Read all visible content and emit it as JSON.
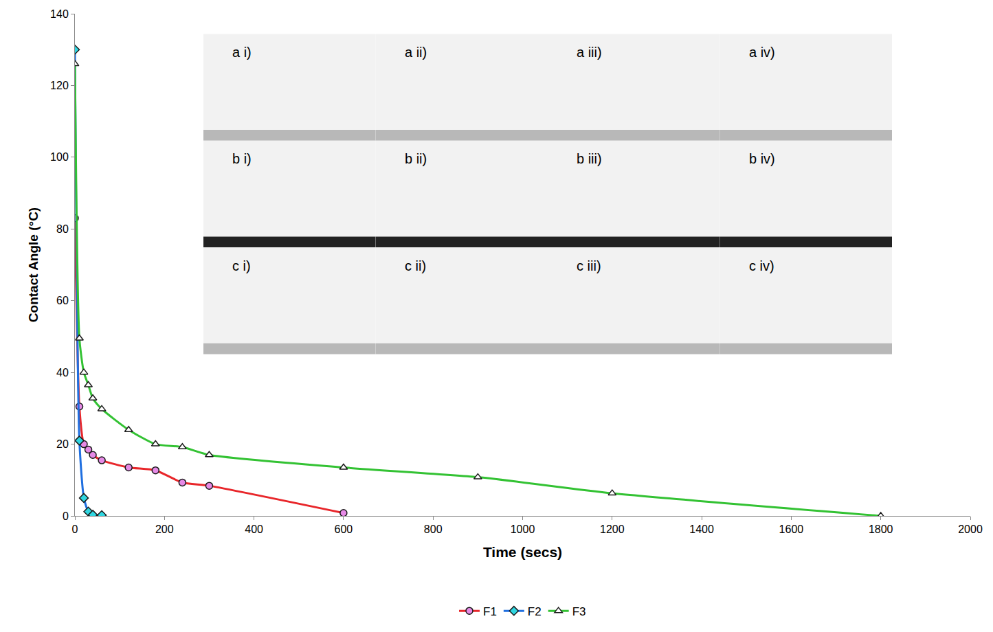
{
  "chart_data": {
    "type": "line",
    "x_label": "Time (secs)",
    "y_label": "Contact Angle (°C)",
    "xlim": [
      0,
      2000
    ],
    "xticks": [
      0,
      200,
      400,
      600,
      800,
      1000,
      1200,
      1400,
      1600,
      1800,
      2000
    ],
    "ylim": [
      0,
      140
    ],
    "yticks": [
      0,
      20,
      40,
      60,
      80,
      100,
      120,
      140
    ],
    "grid": false,
    "legend": "bottom",
    "annotations": [
      "a i)",
      "a ii)",
      "a iii)",
      "a iv)",
      "b i)",
      "b ii)",
      "b iii)",
      "b iv)",
      "c i)",
      "c ii)",
      "c iii)",
      "c iv)"
    ],
    "series": [
      {
        "name": "F1",
        "color": "#e8262a",
        "marker": "circle",
        "x": [
          0,
          10,
          20,
          30,
          40,
          60,
          120,
          180,
          240,
          300,
          600
        ],
        "values": [
          83,
          30.5,
          20,
          18.5,
          17,
          15.5,
          13.5,
          12.7,
          9.3,
          8.4,
          0.8
        ]
      },
      {
        "name": "F2",
        "color": "#1f6fe0",
        "marker": "diamond",
        "x": [
          0,
          10,
          20,
          30,
          40,
          60
        ],
        "values": [
          130,
          21,
          5,
          1.2,
          0.3,
          0.2
        ]
      },
      {
        "name": "F3",
        "color": "#33c233",
        "marker": "triangle-up",
        "x": [
          0,
          10,
          20,
          30,
          40,
          60,
          120,
          180,
          240,
          300,
          600,
          900,
          1200,
          1800
        ],
        "values": [
          126,
          49.5,
          40,
          36.5,
          32.8,
          29.8,
          24,
          20,
          19.2,
          17,
          13.5,
          10.8,
          6.3,
          0
        ]
      }
    ]
  }
}
